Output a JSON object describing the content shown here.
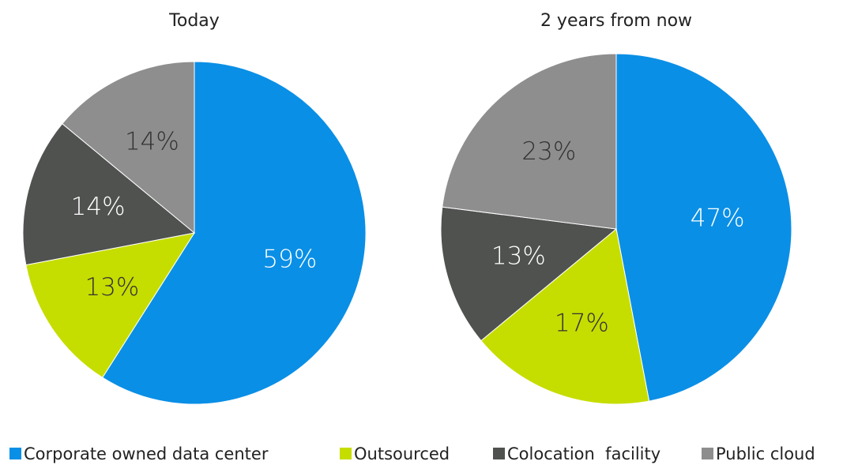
{
  "chart_data": [
    {
      "type": "pie",
      "title": "Today",
      "values": [
        59,
        13,
        14,
        14
      ],
      "value_labels": [
        "59%",
        "13%",
        "14%",
        "14%"
      ]
    },
    {
      "type": "pie",
      "title": "2 years from now",
      "values": [
        47,
        17,
        13,
        23
      ],
      "value_labels": [
        "47%",
        "17%",
        "13%",
        "23%"
      ]
    }
  ],
  "legend": {
    "categories": [
      "Corporate owned data center",
      "Outsourced",
      "Colocation  facility",
      "Public cloud"
    ],
    "colors": [
      "#0a8fe6",
      "#c6dd00",
      "#4f524f",
      "#8e8e8e"
    ],
    "label_colors": [
      "#ffffff",
      "#333333",
      "#ffffff",
      "#333333"
    ]
  }
}
